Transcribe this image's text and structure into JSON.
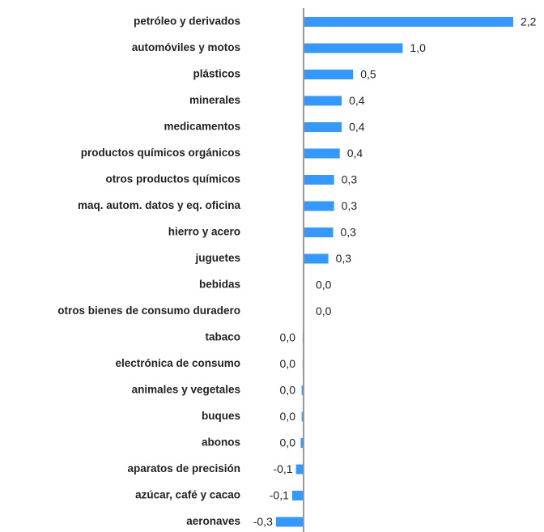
{
  "chart_data": {
    "type": "bar",
    "orientation": "horizontal",
    "color": "#3399ff",
    "categories": [
      "petróleo y derivados",
      "automóviles y motos",
      "plásticos",
      "minerales",
      "medicamentos",
      "productos químicos orgánicos",
      "otros productos químicos",
      "maq. autom. datos y eq. oficina",
      "hierro y acero",
      "juguetes",
      "bebidas",
      "otros bienes de consumo duradero",
      "tabaco",
      "electrónica de consumo",
      "animales y vegetales",
      "buques",
      "abonos",
      "aparatos de precisión",
      "azúcar, café y cacao",
      "aeronaves"
    ],
    "values": [
      2.2,
      1.04,
      0.52,
      0.4,
      0.4,
      0.38,
      0.32,
      0.32,
      0.31,
      0.26,
      0.0,
      0.0,
      -0.01,
      -0.01,
      -0.02,
      -0.02,
      -0.03,
      -0.08,
      -0.12,
      -0.29
    ],
    "value_labels": [
      "2,2",
      "1,0",
      "0,5",
      "0,4",
      "0,4",
      "0,4",
      "0,3",
      "0,3",
      "0,3",
      "0,3",
      "0,0",
      "0,0",
      "0,0",
      "0,0",
      "0,0",
      "0,0",
      "0,0",
      "-0,1",
      "-0,1",
      "-0,3"
    ]
  }
}
